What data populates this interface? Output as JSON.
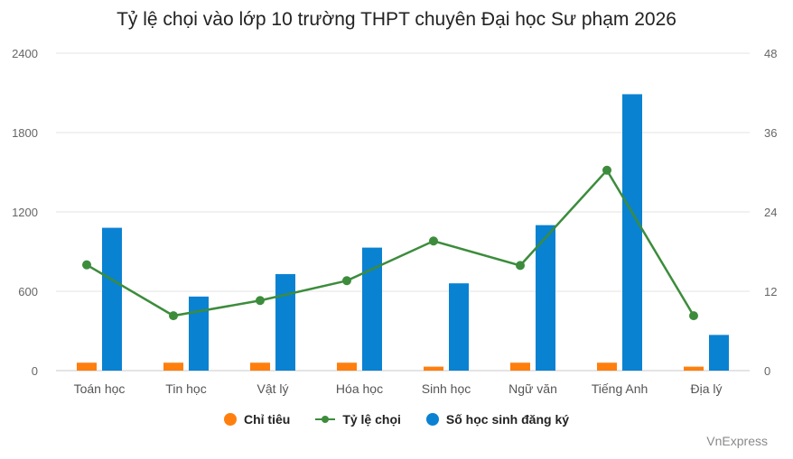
{
  "chart_data": {
    "type": "bar",
    "title": "Tỷ lệ chọi vào lớp 10 trường THPT chuyên Đại học Sư phạm 2026",
    "categories": [
      "Toán học",
      "Tin học",
      "Vật lý",
      "Hóa học",
      "Sinh học",
      "Ngữ văn",
      "Tiếng Anh",
      "Địa lý"
    ],
    "y_left": {
      "lim": [
        0,
        2400
      ],
      "ticks": [
        "0",
        "600",
        "1200",
        "1800",
        "2400"
      ]
    },
    "y_right": {
      "lim": [
        0,
        48
      ],
      "ticks": [
        "0",
        "12",
        "24",
        "36",
        "48"
      ]
    },
    "series": [
      {
        "name": "Chỉ tiêu",
        "type": "bar",
        "axis": "left",
        "color": "#ff7f0e",
        "values": [
          60,
          60,
          60,
          60,
          30,
          60,
          60,
          30
        ]
      },
      {
        "name": "Tỷ lệ chọi",
        "type": "line",
        "axis": "right",
        "color": "#3c8c3c",
        "values": [
          16.0,
          8.3,
          10.6,
          13.6,
          19.6,
          15.9,
          30.3,
          8.3
        ]
      },
      {
        "name": "Số học sinh đăng ký",
        "type": "bar",
        "axis": "left",
        "color": "#0a82d2",
        "values": [
          1080,
          560,
          730,
          930,
          660,
          1100,
          2090,
          270
        ]
      }
    ],
    "grid": true,
    "legend_position": "bottom"
  },
  "credit": "VnExpress"
}
